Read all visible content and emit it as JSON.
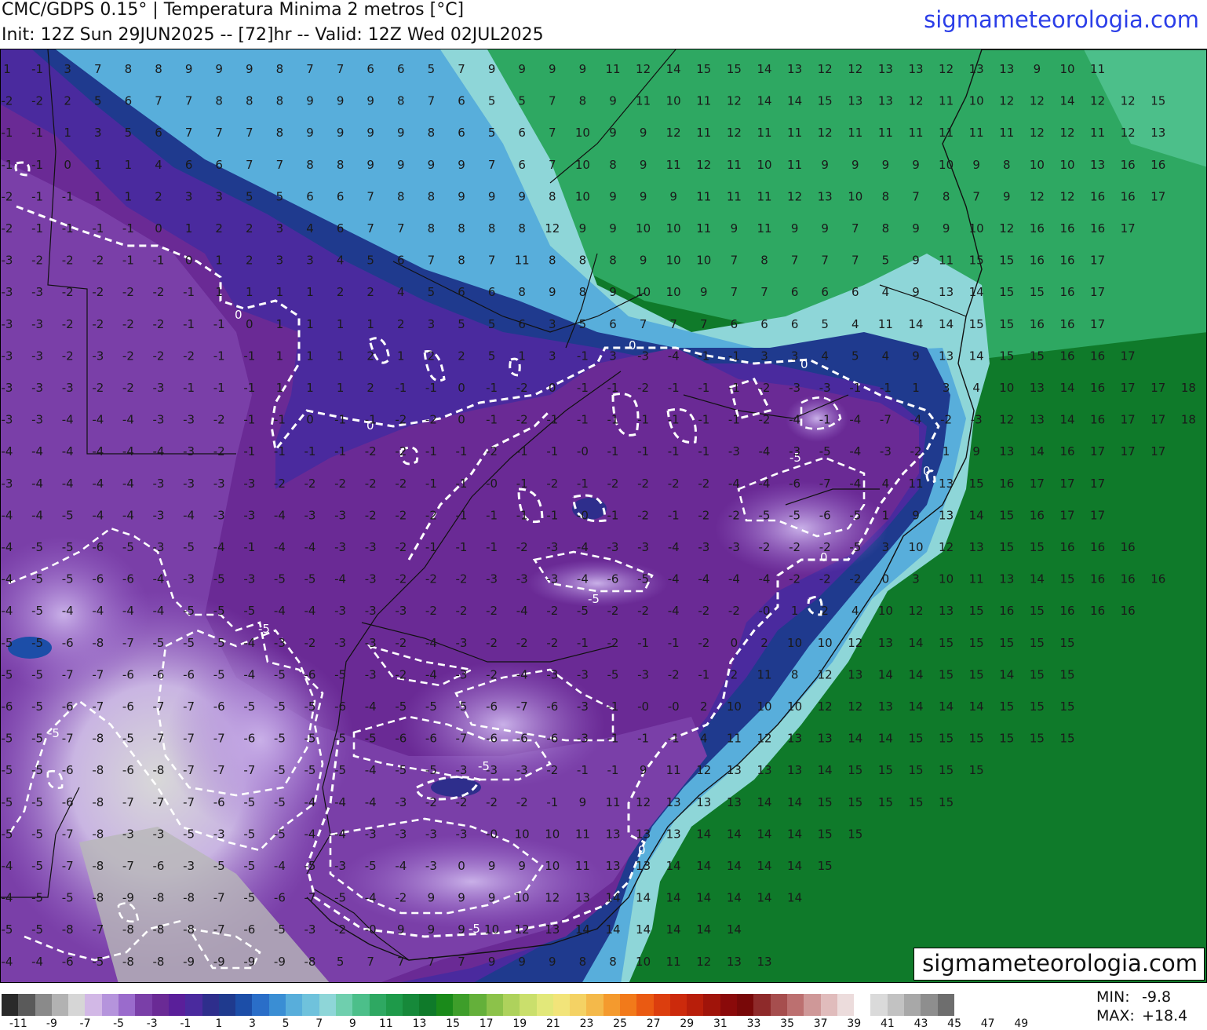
{
  "header": {
    "title_line1": "CMC/GDPS 0.15° | Temperatura Minima 2 metros [°C]",
    "title_line2": "Init: 12Z Sun 29JUN2025 -- [72]hr -- Valid: 12Z Wed 02JUL2025",
    "brand": "sigmameteorologia.com"
  },
  "map": {
    "watermark": "sigmameteorologia.com",
    "contour_labels": [
      "0",
      "0",
      "0",
      "0",
      "0",
      "0",
      "0",
      "-5",
      "-5",
      "-5",
      "-5",
      "-5",
      "-5"
    ],
    "value_grid": {
      "rows": [
        "1 -1 3 7 8 8 9 9 9 8 7 7 6 6 5 7 9 9 9 9 11 12 14 15 15 14 13 12 12 13 13 12 13 13 9 10 11",
        "-2 -2 2 5 6 7 7 8 8 8 9 9 9 8 7 6 5 5 7 8 9 11 10 11 12 14 14 15 13 13 12 11 10 12 12 14 12 12 15",
        "-1 -1 1 3 5 6 7 7 7 8 9 9 9 9 8 6 5 6 7 10 9 9 12 11 12 11 11 12 11 11 11 11 11 11 12 12 11 12 13",
        "-1 -1 0 1 1 4 6 6 7 7 8 8 9 9 9 9 7 6 7 10 8 9 11 12 11 10 11 9 9 9 9 10 9 8 10 10 13 16 16",
        "-2 -1 -1 1 1 2 3 3 5 5 6 6 7 8 8 9 9 9 8 10 9 9 9 11 11 11 12 13 10 8 7 8 7 9 12 12 16 16 17",
        "-2 -1 -1 -1 -1 0 1 2 2 3 4 6 7 7 8 8 8 8 12 9 9 10 10 11 9 11 9 9 7 8 9 9 10 12 16 16 16 17",
        "-3 -2 -2 -2 -1 -1 0 1 2 3 3 4 5 6 7 8 7 11 8 8 8 9 10 10 7 8 7 7 7 5 9 11 15 15 16 16 17",
        "-3 -3 -2 -2 -2 -2 -1 1 1 1 1 2 2 4 5 6 6 8 9 8 9 10 10 9 7 7 6 6 6 4 9 13 14 15 15 16 17",
        "-3 -3 -2 -2 -2 -2 -1 -1 0 1 1 1 1 2 3 5 5 6 3 5 6 7 7 7 6 6 6 5 4 11 14 14 15 15 16 16 17",
        "-3 -3 -2 -3 -2 -2 -2 -1 -1 1 1 1 2 1 2 2 5 1 3 -1 3 -3 -4 -1 -1 3 3 4 5 4 9 13 14 15 15 16 16 17",
        "-3 -3 -3 -2 -2 -3 -1 -1 -1 1 1 1 2 -1 -1 0 -1 -2 0 -1 -1 -2 -1 -1 -1 -2 -3 -3 -1 -1 1 3 4 10 13 14 16 17 17 18 18",
        "-3 -3 -4 -4 -4 -3 -3 -2 -1 -1 0 -1 -1 -2 -2 0 -1 -2 -1 -1 -1 -1 -1 -1 -1 -2 -4 -1 -4 -7 -4 -2 -3 12 13 14 16 17 17 18 18",
        "-4 -4 -4 -4 -4 -4 -3 -2 -1 -1 -1 -1 -2 -2 -1 -1 -2 -1 -1 -0 -1 -1 -1 -1 -3 -4 -3 -5 -4 -3 -2 1 9 13 14 16 17 17 17",
        "-3 -4 -4 -4 -4 -3 -3 -3 -3 -2 -2 -2 -2 -2 -1 -1 -0 -1 -2 -1 -2 -2 -2 -2 -4 -4 -6 -7 -4 4 11 13 15 16 17 17 17",
        "-4 -4 -5 -4 -4 -3 -4 -3 -3 -4 -3 -3 -2 -2 -2 -1 -1 -1 -1 -0 -1 -2 -1 -2 -2 -5 -5 -6 -5 1 9 13 14 15 16 17 17",
        "-4 -5 -5 -6 -5 -3 -5 -4 -1 -4 -4 -3 -3 -2 -1 -1 -1 -2 -3 -4 -3 -3 -4 -3 -3 -2 -2 -2 -5 3 10 12 13 15 15 16 16 16",
        "-4 -5 -5 -6 -6 -4 -3 -5 -3 -5 -5 -4 -3 -2 -2 -2 -3 -3 -3 -4 -6 -5 -4 -4 -4 -4 -2 -2 -2 0 3 10 11 13 14 15 16 16 16",
        "-4 -5 -4 -4 -4 -4 -5 -5 -5 -4 -4 -3 -3 -3 -2 -2 -2 -4 -2 -5 -2 -2 -4 -2 -2 -0 1 2 4 10 12 13 15 16 15 16 16 16",
        "-5 -5 -6 -8 -7 -5 -5 -5 -4 -3 -2 -3 -3 -2 -4 -3 -2 -2 -2 -1 -2 -1 -1 -2 0 2 10 10 12 13 14 15 15 15 15 15",
        "-5 -5 -7 -7 -6 -6 -6 -5 -4 -5 -6 -5 -3 -2 -4 -3 -2 -4 -3 -3 -5 -3 -2 -1 2 11 8 12 13 14 14 15 15 14 15 15",
        "-6 -5 -6 -7 -6 -7 -7 -6 -5 -5 -5 -6 -4 -5 -5 -5 -6 -7 -6 -3 -1 -0 -0 2 10 10 10 12 12 13 14 14 14 15 15 15",
        "-5 -5 -7 -8 -5 -7 -7 -7 -6 -5 -5 -5 -5 -6 -6 -7 -6 -6 -6 -3 -1 -1 -1 4 11 12 13 13 14 14 15 15 15 15 15 15",
        "-5 -5 -6 -8 -6 -8 -7 -7 -7 -5 -5 -5 -4 -5 -5 -3 -3 -3 -2 -1 -1 9 11 12 13 13 13 14 15 15 15 15 15",
        "-5 -5 -6 -8 -7 -7 -7 -6 -5 -5 -4 -4 -4 -3 -2 -2 -2 -2 -1 9 11 12 13 13 13 14 14 15 15 15 15 15",
        "-5 -5 -7 -8 -3 -3 -5 -3 -5 -5 -4 -4 -3 -3 -3 -3 -0 10 10 11 13 13 13 14 14 14 14 15 15",
        "-4 -5 -7 -8 -7 -6 -3 -5 -5 -4 -5 -3 -5 -4 -3 0 9 9 10 11 13 13 14 14 14 14 14 15",
        "-4 -5 -5 -8 -9 -8 -8 -7 -5 -6 -7 -5 -4 -2 9 9 9 10 12 13 14 14 14 14 14 14 14",
        "-5 -5 -8 -7 -8 -8 -8 -7 -6 -5 -3 -2 -0 9 9 9 10 12 13 14 14 14 14 14 14",
        "-4 -4 -6 -5 -8 -8 -9 -9 -9 -9 -8 5 7 7 7 7 9 9 9 8 8 10 11 12 13 13"
      ]
    }
  },
  "colorbar": {
    "tick_labels": [
      "-11",
      "-9",
      "-7",
      "-5",
      "-3",
      "-1",
      "1",
      "3",
      "5",
      "7",
      "9",
      "11",
      "13",
      "15",
      "17",
      "19",
      "21",
      "23",
      "25",
      "27",
      "29",
      "31",
      "33",
      "35",
      "37",
      "39",
      "41",
      "43",
      "45",
      "47",
      "49"
    ],
    "colors": [
      "#2a2a2a",
      "#5a5a5a",
      "#8a8a8a",
      "#b2b2b2",
      "#d6d6d6",
      "#d2b8e6",
      "#b594dc",
      "#9a6bcc",
      "#7a3fa8",
      "#6a2a95",
      "#5a1f9a",
      "#4a2a9e",
      "#2e2e8c",
      "#1f3a8e",
      "#1c4ea8",
      "#2a6ec8",
      "#3a8ed4",
      "#58aedb",
      "#6fc2dc",
      "#8ed6d8",
      "#6fcfae",
      "#4cbf8a",
      "#2ea862",
      "#1e9a4a",
      "#16893a",
      "#0f7a2a",
      "#1a8a1a",
      "#3e9e2a",
      "#64b03a",
      "#8cc24a",
      "#aed25c",
      "#cadf6c",
      "#e2e87a",
      "#f2e47a",
      "#f4d264",
      "#f4b94a",
      "#f49a2e",
      "#f27a1a",
      "#ea5a12",
      "#dc3e0e",
      "#cc2a0c",
      "#b81e0a",
      "#a0140a",
      "#8a0a0a",
      "#780808",
      "#8e2a2a",
      "#a64e4e",
      "#bc7070",
      "#cf9898",
      "#e0bcbc",
      "#ecdcdc",
      "#ffffff",
      "#dadada",
      "#c2c2c2",
      "#a8a8a8",
      "#8e8e8e",
      "#6e6e6e"
    ],
    "min_label": "MIN:",
    "min_value": "-9.8",
    "max_label": "MAX:",
    "max_value": "+18.4"
  }
}
